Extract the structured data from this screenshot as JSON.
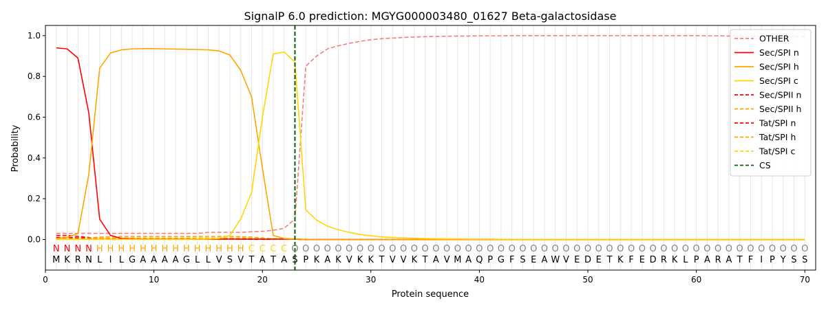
{
  "chart_data": {
    "type": "line",
    "title": "SignalP 6.0 prediction: MGYG000003480_01627 Beta-galactosidase",
    "xlabel": "Protein sequence",
    "ylabel": "Probability",
    "xlim": [
      0,
      71
    ],
    "ylim": [
      -0.15,
      1.05
    ],
    "xticks": [
      0,
      10,
      20,
      30,
      40,
      50,
      60,
      70
    ],
    "yticks": [
      0.0,
      0.2,
      0.4,
      0.6,
      0.8,
      1.0
    ],
    "grid": "vertical lines at each residue",
    "legend_position": "top-right",
    "sequence": [
      "M",
      "K",
      "R",
      "N",
      "L",
      "I",
      "L",
      "G",
      "A",
      "A",
      "A",
      "A",
      "G",
      "L",
      "L",
      "V",
      "S",
      "V",
      "T",
      "A",
      "T",
      "A",
      "S",
      "P",
      "K",
      "A",
      "K",
      "V",
      "K",
      "K",
      "T",
      "V",
      "V",
      "K",
      "T",
      "A",
      "V",
      "M",
      "A",
      "Q",
      "P",
      "G",
      "F",
      "S",
      "E",
      "A",
      "W",
      "V",
      "E",
      "D",
      "E",
      "T",
      "K",
      "F",
      "E",
      "D",
      "R",
      "K",
      "L",
      "P",
      "A",
      "R",
      "A",
      "T",
      "F",
      "I",
      "P",
      "Y",
      "S",
      "S"
    ],
    "regions": [
      "N",
      "N",
      "N",
      "N",
      "H",
      "H",
      "H",
      "H",
      "H",
      "H",
      "H",
      "H",
      "H",
      "H",
      "H",
      "H",
      "H",
      "H",
      "C",
      "C",
      "C",
      "C",
      "O",
      "O",
      "O",
      "O",
      "O",
      "O",
      "O",
      "O",
      "O",
      "O",
      "O",
      "O",
      "O",
      "O",
      "O",
      "O",
      "O",
      "O",
      "O",
      "O",
      "O",
      "O",
      "O",
      "O",
      "O",
      "O",
      "O",
      "O",
      "O",
      "O",
      "O",
      "O",
      "O",
      "O",
      "O",
      "O",
      "O",
      "O",
      "O",
      "O",
      "O",
      "O",
      "O",
      "O",
      "O",
      "O",
      "O",
      "O"
    ],
    "region_colors": {
      "N": "#ff0000",
      "H": "#ffa500",
      "C": "#ffd700",
      "O": "#808080"
    },
    "cleavage_site": 23,
    "series": [
      {
        "name": "OTHER",
        "color": "#f08080",
        "dash": "dashed",
        "values": [
          0.03,
          0.03,
          0.03,
          0.03,
          0.03,
          0.03,
          0.03,
          0.03,
          0.03,
          0.03,
          0.03,
          0.03,
          0.03,
          0.03,
          0.035,
          0.035,
          0.035,
          0.035,
          0.038,
          0.04,
          0.045,
          0.055,
          0.1,
          0.85,
          0.9,
          0.935,
          0.95,
          0.962,
          0.972,
          0.98,
          0.985,
          0.988,
          0.991,
          0.993,
          0.995,
          0.996,
          0.997,
          0.998,
          0.998,
          0.999,
          0.999,
          0.999,
          1.0,
          1.0,
          1.0,
          1.0,
          1.0,
          1.0,
          1.0,
          1.0,
          1.0,
          1.0,
          1.0,
          1.0,
          1.0,
          1.0,
          1.0,
          1.0,
          1.0,
          1.0,
          0.999,
          0.999,
          0.998,
          0.998,
          0.997,
          0.997,
          0.996,
          0.995,
          0.995,
          0.995
        ]
      },
      {
        "name": "Sec/SPI n",
        "color": "#ff0000",
        "dash": "solid",
        "values": [
          0.94,
          0.935,
          0.89,
          0.62,
          0.1,
          0.02,
          0.005,
          0.003,
          0.002,
          0.002,
          0.002,
          0.002,
          0.002,
          0.002,
          0.002,
          0.002,
          0.002,
          0.002,
          0.002,
          0.002,
          0.002,
          0.002,
          0.002,
          0,
          0,
          0,
          0,
          0,
          0,
          0,
          0,
          0,
          0,
          0,
          0,
          0,
          0,
          0,
          0,
          0,
          0,
          0,
          0,
          0,
          0,
          0,
          0,
          0,
          0,
          0,
          0,
          0,
          0,
          0,
          0,
          0,
          0,
          0,
          0,
          0,
          0,
          0,
          0,
          0,
          0,
          0,
          0,
          0,
          0,
          0
        ]
      },
      {
        "name": "Sec/SPI h",
        "color": "#ffa500",
        "dash": "solid",
        "values": [
          0.005,
          0.01,
          0.03,
          0.32,
          0.84,
          0.915,
          0.93,
          0.935,
          0.936,
          0.936,
          0.935,
          0.934,
          0.933,
          0.932,
          0.93,
          0.925,
          0.905,
          0.83,
          0.7,
          0.35,
          0.02,
          0.005,
          0.002,
          0.001,
          0,
          0,
          0,
          0,
          0,
          0,
          0,
          0,
          0,
          0,
          0,
          0,
          0,
          0,
          0,
          0,
          0,
          0,
          0,
          0,
          0,
          0,
          0,
          0,
          0,
          0,
          0,
          0,
          0,
          0,
          0,
          0,
          0,
          0,
          0,
          0,
          0,
          0,
          0,
          0,
          0,
          0,
          0,
          0,
          0,
          0
        ]
      },
      {
        "name": "Sec/SPI c",
        "color": "#ffd700",
        "dash": "solid",
        "values": [
          0.001,
          0.001,
          0.001,
          0.001,
          0.001,
          0.001,
          0.001,
          0.001,
          0.001,
          0.001,
          0.001,
          0.001,
          0.001,
          0.002,
          0.003,
          0.005,
          0.02,
          0.1,
          0.23,
          0.6,
          0.91,
          0.92,
          0.87,
          0.145,
          0.095,
          0.065,
          0.048,
          0.035,
          0.025,
          0.018,
          0.013,
          0.01,
          0.008,
          0.006,
          0.005,
          0.004,
          0.003,
          0.003,
          0.002,
          0.002,
          0.002,
          0.001,
          0.001,
          0.001,
          0.001,
          0.001,
          0.001,
          0.001,
          0.001,
          0.001,
          0.001,
          0.001,
          0.001,
          0.001,
          0.001,
          0.001,
          0.001,
          0.001,
          0.001,
          0.001,
          0.001,
          0.001,
          0.001,
          0.001,
          0.001,
          0.001,
          0.001,
          0.001,
          0.001,
          0.001
        ]
      },
      {
        "name": "Sec/SPII n",
        "color": "#ff0000",
        "dash": "dashed",
        "values": [
          0.02,
          0.02,
          0.015,
          0.01,
          0.005,
          0.003,
          0.002,
          0.002,
          0.002,
          0.002,
          0.002,
          0.002,
          0.002,
          0.002,
          0.002,
          0.002,
          0.002,
          0.002,
          0.002,
          0.002,
          0.002,
          0.002,
          0.002,
          0,
          0,
          0,
          0,
          0,
          0,
          0,
          0,
          0,
          0,
          0,
          0,
          0,
          0,
          0,
          0,
          0,
          0,
          0,
          0,
          0,
          0,
          0,
          0,
          0,
          0,
          0,
          0,
          0,
          0,
          0,
          0,
          0,
          0,
          0,
          0,
          0,
          0,
          0,
          0,
          0,
          0,
          0,
          0,
          0,
          0,
          0
        ]
      },
      {
        "name": "Sec/SPII h",
        "color": "#ffa500",
        "dash": "dashed",
        "values": [
          0.005,
          0.005,
          0.006,
          0.008,
          0.012,
          0.014,
          0.015,
          0.015,
          0.015,
          0.015,
          0.015,
          0.015,
          0.015,
          0.015,
          0.015,
          0.015,
          0.015,
          0.014,
          0.012,
          0.008,
          0.004,
          0.002,
          0.001,
          0,
          0,
          0,
          0,
          0,
          0,
          0,
          0,
          0,
          0,
          0,
          0,
          0,
          0,
          0,
          0,
          0,
          0,
          0,
          0,
          0,
          0,
          0,
          0,
          0,
          0,
          0,
          0,
          0,
          0,
          0,
          0,
          0,
          0,
          0,
          0,
          0,
          0,
          0,
          0,
          0,
          0,
          0,
          0,
          0,
          0,
          0
        ]
      },
      {
        "name": "Tat/SPI n",
        "color": "#ff0000",
        "dash": "dashed",
        "values": [
          0.01,
          0.01,
          0.008,
          0.006,
          0.003,
          0.002,
          0.001,
          0.001,
          0.001,
          0.001,
          0.001,
          0.001,
          0.001,
          0.001,
          0.001,
          0.001,
          0.001,
          0.001,
          0.001,
          0.001,
          0.001,
          0.001,
          0.001,
          0,
          0,
          0,
          0,
          0,
          0,
          0,
          0,
          0,
          0,
          0,
          0,
          0,
          0,
          0,
          0,
          0,
          0,
          0,
          0,
          0,
          0,
          0,
          0,
          0,
          0,
          0,
          0,
          0,
          0,
          0,
          0,
          0,
          0,
          0,
          0,
          0,
          0,
          0,
          0,
          0,
          0,
          0,
          0,
          0,
          0,
          0
        ]
      },
      {
        "name": "Tat/SPI h",
        "color": "#ffa500",
        "dash": "dashed",
        "values": [
          0.002,
          0.002,
          0.003,
          0.004,
          0.006,
          0.007,
          0.007,
          0.007,
          0.007,
          0.007,
          0.007,
          0.007,
          0.007,
          0.007,
          0.007,
          0.007,
          0.007,
          0.007,
          0.006,
          0.004,
          0.002,
          0.001,
          0.001,
          0,
          0,
          0,
          0,
          0,
          0,
          0,
          0,
          0,
          0,
          0,
          0,
          0,
          0,
          0,
          0,
          0,
          0,
          0,
          0,
          0,
          0,
          0,
          0,
          0,
          0,
          0,
          0,
          0,
          0,
          0,
          0,
          0,
          0,
          0,
          0,
          0,
          0,
          0,
          0,
          0,
          0,
          0,
          0,
          0,
          0,
          0
        ]
      },
      {
        "name": "Tat/SPI c",
        "color": "#ffd700",
        "dash": "dashed",
        "values": [
          0,
          0,
          0,
          0,
          0,
          0,
          0,
          0,
          0,
          0,
          0,
          0,
          0,
          0,
          0,
          0,
          0.001,
          0.002,
          0.003,
          0.004,
          0.005,
          0.005,
          0.004,
          0.001,
          0,
          0,
          0,
          0,
          0,
          0,
          0,
          0,
          0,
          0,
          0,
          0,
          0,
          0,
          0,
          0,
          0,
          0,
          0,
          0,
          0,
          0,
          0,
          0,
          0,
          0,
          0,
          0,
          0,
          0,
          0,
          0,
          0,
          0,
          0,
          0,
          0,
          0,
          0,
          0,
          0,
          0,
          0,
          0,
          0,
          0
        ]
      }
    ],
    "legend": [
      {
        "label": "OTHER",
        "color": "#f08080",
        "dash": "dashed"
      },
      {
        "label": "Sec/SPI n",
        "color": "#ff0000",
        "dash": "solid"
      },
      {
        "label": "Sec/SPI h",
        "color": "#ffa500",
        "dash": "solid"
      },
      {
        "label": "Sec/SPI c",
        "color": "#ffd700",
        "dash": "solid"
      },
      {
        "label": "Sec/SPII n",
        "color": "#ff0000",
        "dash": "dashed"
      },
      {
        "label": "Sec/SPII h",
        "color": "#ffa500",
        "dash": "dashed"
      },
      {
        "label": "Tat/SPI n",
        "color": "#ff0000",
        "dash": "dashed"
      },
      {
        "label": "Tat/SPI h",
        "color": "#ffa500",
        "dash": "dashed"
      },
      {
        "label": "Tat/SPI c",
        "color": "#ffd700",
        "dash": "dashed"
      },
      {
        "label": "CS",
        "color": "#006400",
        "dash": "dashed"
      }
    ]
  }
}
